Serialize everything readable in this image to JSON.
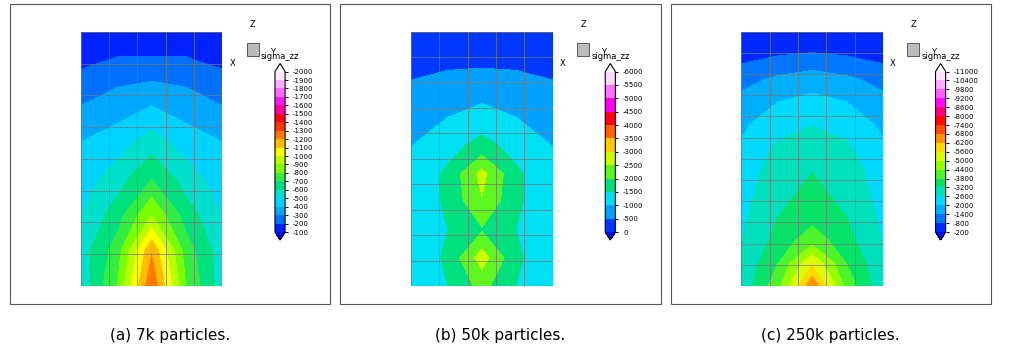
{
  "chart_data": [
    {
      "type": "contour",
      "title": "(a) 7k particles.",
      "tick_labels": false,
      "axis_labels": [
        "X",
        "Y",
        "Z"
      ],
      "colorbar": {
        "label": "sigma_zz",
        "ticks": [
          -100,
          -200,
          -300,
          -400,
          -500,
          -600,
          -700,
          -800,
          -900,
          -1000,
          -1100,
          -1200,
          -1300,
          -1400,
          -1500,
          -1600,
          -1700,
          -1800,
          -1900,
          -2000
        ]
      },
      "cells": [
        [
          -100,
          -100,
          -100,
          -100,
          -100
        ],
        [
          -200,
          -250,
          -250,
          -250,
          -200
        ],
        [
          -300,
          -350,
          -400,
          -350,
          -300
        ],
        [
          -400,
          -450,
          -550,
          -450,
          -400
        ],
        [
          -450,
          -550,
          -700,
          -550,
          -450
        ],
        [
          -500,
          -650,
          -900,
          -650,
          -500
        ],
        [
          -550,
          -750,
          -1200,
          -750,
          -550
        ],
        [
          -550,
          -800,
          -1300,
          -800,
          -550
        ]
      ]
    },
    {
      "type": "contour",
      "title": "(b) 50k particles.",
      "tick_labels": false,
      "axis_labels": [
        "X",
        "Y",
        "Z"
      ],
      "colorbar": {
        "label": "sigma_zz",
        "ticks": [
          0,
          -500,
          -1000,
          -1500,
          -2000,
          -2500,
          -3000,
          -3500,
          -4000,
          -4500,
          -5000,
          -5500,
          -6000
        ]
      },
      "cells": [
        [
          -100,
          -100,
          -100,
          -100,
          -100
        ],
        [
          -300,
          -400,
          -400,
          -400,
          -300
        ],
        [
          -600,
          -700,
          -800,
          -700,
          -600
        ],
        [
          -800,
          -1000,
          -1200,
          -1000,
          -800
        ],
        [
          -1000,
          -1300,
          -1700,
          -1300,
          -1000
        ],
        [
          -1100,
          -1600,
          -2700,
          -1600,
          -1100
        ],
        [
          -1100,
          -1600,
          -2500,
          -1600,
          -1100
        ],
        [
          -1100,
          -1500,
          -2000,
          -1500,
          -1100
        ],
        [
          -1100,
          -1600,
          -2800,
          -1600,
          -1100
        ],
        [
          -1000,
          -1500,
          -2200,
          -1500,
          -1000
        ]
      ]
    },
    {
      "type": "contour",
      "title": "(c) 250k particles.",
      "tick_labels": false,
      "axis_labels": [
        "X",
        "Y",
        "Z"
      ],
      "colorbar": {
        "label": "sigma_zz",
        "ticks": [
          -200,
          -800,
          -1400,
          -2000,
          -2600,
          -3200,
          -3800,
          -4400,
          -5000,
          -5600,
          -6200,
          -6800,
          -7400,
          -8000,
          -8600,
          -9200,
          -9800,
          -10400,
          -11000
        ]
      },
      "cells": [
        [
          -200,
          -200,
          -200,
          -200,
          -200
        ],
        [
          -600,
          -800,
          -900,
          -800,
          -600
        ],
        [
          -1200,
          -1500,
          -1700,
          -1500,
          -1200
        ],
        [
          -1600,
          -2000,
          -2200,
          -2000,
          -1600
        ],
        [
          -1900,
          -2400,
          -2600,
          -2400,
          -1900
        ],
        [
          -2100,
          -2700,
          -3000,
          -2700,
          -2100
        ],
        [
          -2300,
          -2900,
          -3200,
          -2900,
          -2300
        ],
        [
          -2400,
          -3000,
          -3400,
          -3000,
          -2400
        ],
        [
          -2500,
          -3200,
          -3600,
          -3200,
          -2500
        ],
        [
          -2600,
          -3400,
          -4200,
          -3400,
          -2600
        ],
        [
          -2700,
          -3800,
          -5600,
          -3800,
          -2700
        ],
        [
          -2800,
          -4200,
          -6800,
          -4200,
          -2800
        ]
      ]
    }
  ]
}
